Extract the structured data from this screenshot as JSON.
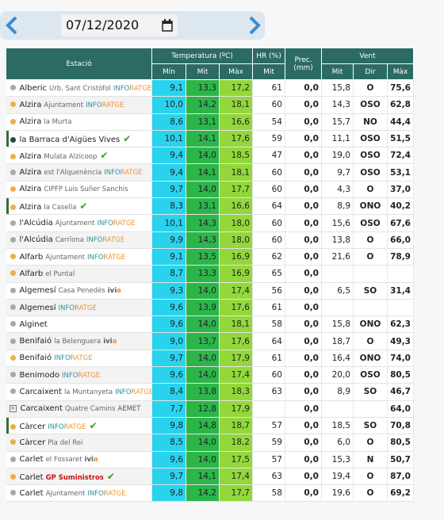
{
  "header": {
    "date": "07/12/2020"
  },
  "table": {
    "groups": [
      "Estació",
      "Temperatura (ºC)",
      "HR (%)",
      "Prec. (mm)",
      "Vent"
    ],
    "subheaders": [
      "Mín",
      "Mit",
      "Màx",
      "Mit",
      "Mit",
      "Dir",
      "Màx"
    ],
    "rows": [
      {
        "marker": "#a8a8a8",
        "name": "Alberic",
        "sub": "Urb. Sant Cristòfol",
        "source": "INFORATGE",
        "cells": [
          "9,1",
          "13,3",
          "17,2",
          "61",
          "0,0",
          "15,8",
          "O",
          "75,6"
        ]
      },
      {
        "marker": "#e8b04a",
        "name": "Alzira",
        "sub": "Ajuntament",
        "source": "INFORATGE",
        "cells": [
          "10,0",
          "14,2",
          "18,1",
          "60",
          "0,0",
          "14,3",
          "OSO",
          "62,8"
        ]
      },
      {
        "marker": "#e8b04a",
        "name": "Alzira",
        "sub": "la Murta",
        "source": null,
        "cells": [
          "8,6",
          "13,1",
          "16,6",
          "54",
          "0,0",
          "15,7",
          "NO",
          "44,4"
        ]
      },
      {
        "marker": "#1d4f3c",
        "name": "la Barraca d'Aigües Vives",
        "sub": null,
        "source": null,
        "check": true,
        "highlight": true,
        "cells": [
          "10,1",
          "14,1",
          "17,6",
          "59",
          "0,0",
          "11,1",
          "OSO",
          "51,5"
        ]
      },
      {
        "marker": "#e8b04a",
        "name": "Alzira",
        "sub": "Mulata Alzicoop",
        "source": null,
        "check": true,
        "cells": [
          "9,4",
          "14,0",
          "18,5",
          "47",
          "0,0",
          "19,0",
          "OSO",
          "72,4"
        ]
      },
      {
        "marker": "#a8a8a8",
        "name": "Alzira",
        "sub": "est l'Alquenència",
        "source": "INFORATGE",
        "cells": [
          "9,4",
          "14,1",
          "18,1",
          "60",
          "0,0",
          "9,7",
          "OSO",
          "53,1"
        ]
      },
      {
        "marker": "#e8b04a",
        "name": "Alzira",
        "sub": "CIPFP Luis Suñer Sanchis",
        "source": null,
        "cells": [
          "9,7",
          "14,0",
          "17,7",
          "60",
          "0,0",
          "4,3",
          "O",
          "37,0"
        ]
      },
      {
        "marker": "#e8b04a",
        "name": "Alzira",
        "sub": "la Casella",
        "source": null,
        "check": true,
        "highlight": true,
        "cells": [
          "8,3",
          "13,1",
          "16,6",
          "64",
          "0,0",
          "8,9",
          "ONO",
          "40,2"
        ]
      },
      {
        "marker": "#a8a8a8",
        "name": "l'Alcúdia",
        "sub": "Ajuntament",
        "source": "INFORATGE",
        "cells": [
          "10,1",
          "14,3",
          "18,0",
          "60",
          "0,0",
          "15,6",
          "OSO",
          "67,6"
        ]
      },
      {
        "marker": "#a8a8a8",
        "name": "l'Alcúdia",
        "sub": "Carrïona",
        "source": "INFORATGE",
        "cells": [
          "9,9",
          "14,3",
          "18,0",
          "60",
          "0,0",
          "13,8",
          "O",
          "66,0"
        ]
      },
      {
        "marker": "#e8b04a",
        "name": "Alfarb",
        "sub": "Ajuntament",
        "source": "INFORATGE",
        "cells": [
          "9,1",
          "13,5",
          "16,9",
          "62",
          "0,0",
          "21,6",
          "O",
          "78,9"
        ]
      },
      {
        "marker": "#e8b04a",
        "name": "Alfarb",
        "sub": "el Puntal",
        "source": null,
        "cells": [
          "8,7",
          "13,3",
          "16,9",
          "65",
          "0,0",
          null,
          null,
          null
        ]
      },
      {
        "marker": "#a8a8a8",
        "name": "Algemesí",
        "sub": "Casa Penedès",
        "source": "ivia",
        "cells": [
          "9,3",
          "14,0",
          "17,4",
          "56",
          "0,0",
          "6,5",
          "SO",
          "31,4"
        ]
      },
      {
        "marker": "#a8a8a8",
        "name": "Algemesí",
        "sub": null,
        "source": "INFORATGE",
        "cells": [
          "9,6",
          "13,9",
          "17,6",
          "61",
          "0,0",
          null,
          null,
          null
        ]
      },
      {
        "marker": "#a8a8a8",
        "name": "Alginet",
        "sub": null,
        "source": null,
        "cells": [
          "9,6",
          "14,0",
          "18,1",
          "58",
          "0,0",
          "15,8",
          "ONO",
          "62,3"
        ]
      },
      {
        "marker": "#a8a8a8",
        "name": "Benifaió",
        "sub": "la Belenguera",
        "source": "ivia",
        "cells": [
          "9,0",
          "13,7",
          "17,6",
          "64",
          "0,0",
          "18,7",
          "O",
          "49,3"
        ]
      },
      {
        "marker": "#e8b04a",
        "name": "Benifaió",
        "sub": null,
        "source": "INFORATGE",
        "cells": [
          "9,7",
          "14,0",
          "17,9",
          "61",
          "0,0",
          "16,4",
          "ONO",
          "74,0"
        ]
      },
      {
        "marker": "#a8a8a8",
        "name": "Benimodo",
        "sub": null,
        "source": "INFORATGE",
        "cells": [
          "9,6",
          "14,0",
          "17,4",
          "60",
          "0,0",
          "20,0",
          "OSO",
          "80,5"
        ]
      },
      {
        "marker": "#a8a8a8",
        "name": "Carcaixent",
        "sub": "la Muntanyeta",
        "source": "INFORATGE",
        "cells": [
          "8,4",
          "13,8",
          "18,3",
          "63",
          "0,0",
          "8,9",
          "SO",
          "46,7"
        ]
      },
      {
        "marker": "box",
        "name": "Carcaixent",
        "sub": "Quatre Camins",
        "source": "AEMET",
        "cells": [
          "7,7",
          "12,8",
          "17,9",
          null,
          "0,0",
          null,
          null,
          "64,0"
        ]
      },
      {
        "marker": "#e8b04a",
        "name": "Càrcer",
        "sub": null,
        "source": "INFORATGE",
        "check": true,
        "highlight": true,
        "cells": [
          "9,8",
          "14,8",
          "18,7",
          "57",
          "0,0",
          "18,5",
          "SO",
          "70,8"
        ]
      },
      {
        "marker": "#e8b04a",
        "name": "Càrcer",
        "sub": "Pla del Rei",
        "source": null,
        "cells": [
          "8,5",
          "14,0",
          "18,2",
          "59",
          "0,0",
          "6,0",
          "O",
          "80,5"
        ]
      },
      {
        "marker": "#a8a8a8",
        "name": "Carlet",
        "sub": "el Fossaret",
        "source": "ivia",
        "cells": [
          "9,6",
          "14,0",
          "17,5",
          "57",
          "0,0",
          "15,3",
          "N",
          "50,7"
        ]
      },
      {
        "marker": "#e8b04a",
        "name": "Carlet",
        "sub": null,
        "source": "GP Suministros",
        "check": true,
        "cells": [
          "9,7",
          "14,1",
          "17,4",
          "63",
          "0,0",
          "19,4",
          "O",
          "87,0"
        ]
      },
      {
        "marker": "#a8a8a8",
        "name": "Carlet",
        "sub": "Ajuntament",
        "source": "INFORATGE",
        "cells": [
          "9,8",
          "14,2",
          "17,7",
          "58",
          "0,0",
          "19,6",
          "O",
          "69,2"
        ]
      }
    ]
  }
}
